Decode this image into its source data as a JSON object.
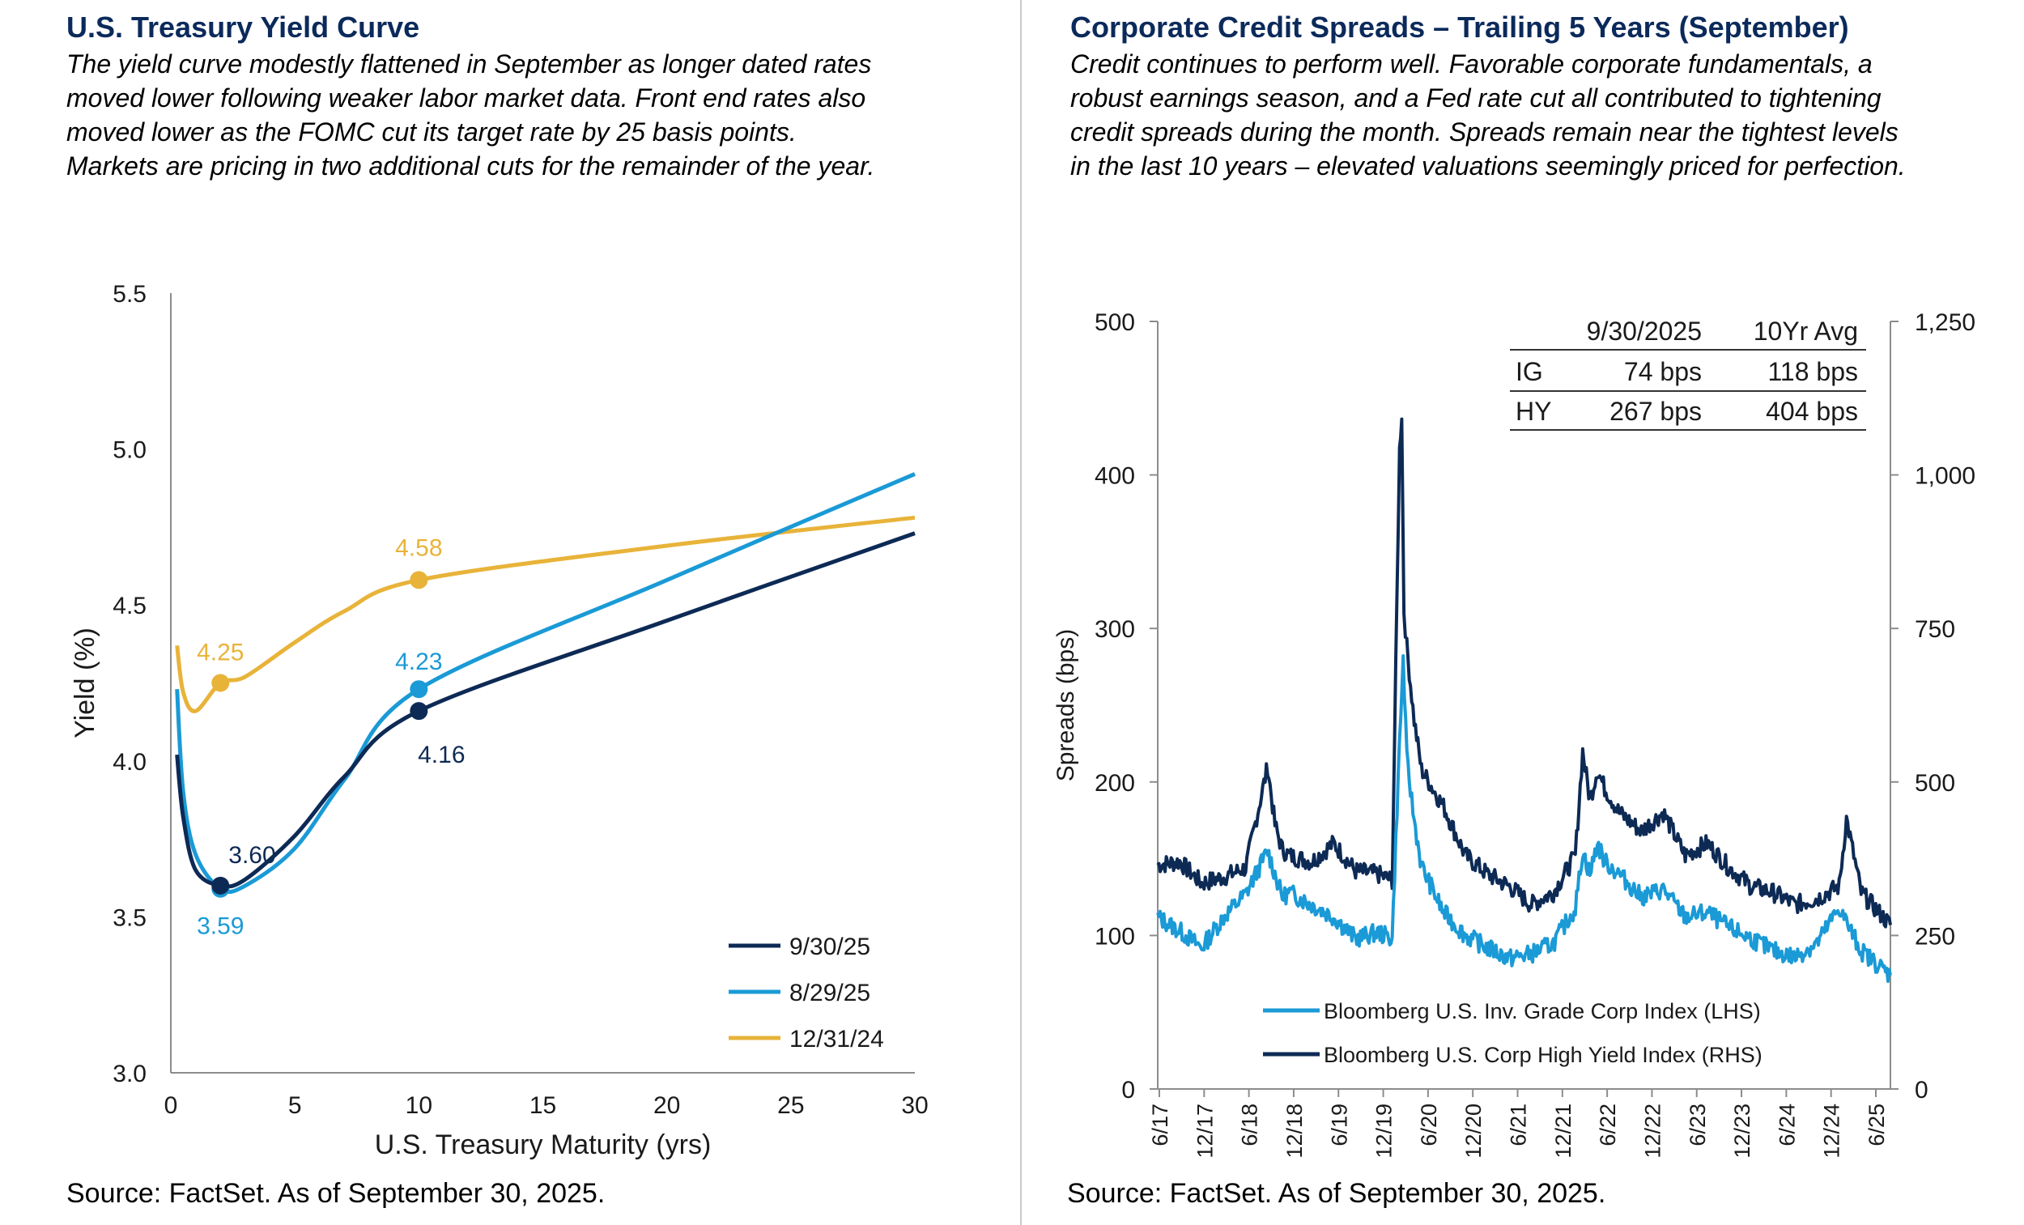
{
  "left": {
    "title": "U.S. Treasury Yield Curve",
    "description": [
      "The yield curve modestly flattened in September as longer dated rates",
      "moved lower following weaker labor market data. Front end rates also",
      "moved lower as the FOMC cut its target rate by 25 basis points.",
      "Markets are pricing in two additional cuts for the remainder of the year."
    ],
    "source": "Source: FactSet. As of September 30, 2025."
  },
  "right": {
    "title": "Corporate Credit Spreads – Trailing 5 Years (September)",
    "description": [
      "Credit continues to perform well. Favorable corporate fundamentals, a",
      "robust earnings season, and a Fed rate cut all contributed to tightening",
      "credit spreads during the month. Spreads remain near the tightest levels",
      "in the last 10 years – elevated valuations seemingly priced for perfection."
    ],
    "source": "Source: FactSet. As of September 30, 2025."
  },
  "chart_data": [
    {
      "type": "line",
      "xlabel": "U.S. Treasury Maturity (yrs)",
      "ylabel": "Yield (%)",
      "xlim": [
        0,
        30
      ],
      "ylim": [
        3.0,
        5.5
      ],
      "xticks": [
        0,
        5,
        10,
        15,
        20,
        25,
        30
      ],
      "yticks": [
        "3.0",
        "3.5",
        "4.0",
        "4.5",
        "5.0",
        "5.5"
      ],
      "legend_position": "bottom-right",
      "series": [
        {
          "name": "9/30/25",
          "color": "#0d2a55",
          "x": [
            0.25,
            0.5,
            1,
            2,
            3,
            5,
            7,
            10,
            20,
            30
          ],
          "y": [
            4.02,
            3.82,
            3.65,
            3.6,
            3.62,
            3.76,
            3.95,
            4.16,
            4.45,
            4.73
          ],
          "markers": [
            {
              "x": 2,
              "y": 3.6,
              "label": "3.60"
            },
            {
              "x": 10,
              "y": 4.16,
              "label": "4.16"
            }
          ]
        },
        {
          "name": "8/29/25",
          "color": "#1a9ad6",
          "x": [
            0.25,
            0.5,
            1,
            2,
            3,
            5,
            7,
            10,
            20,
            30
          ],
          "y": [
            4.23,
            3.9,
            3.7,
            3.59,
            3.6,
            3.72,
            3.94,
            4.23,
            4.58,
            4.92
          ],
          "markers": [
            {
              "x": 2,
              "y": 3.59,
              "label": "3.59"
            },
            {
              "x": 10,
              "y": 4.23,
              "label": "4.23"
            }
          ]
        },
        {
          "name": "12/31/24",
          "color": "#e8b339",
          "x": [
            0.25,
            0.5,
            1,
            2,
            3,
            5,
            7,
            10,
            20,
            30
          ],
          "y": [
            4.37,
            4.22,
            4.16,
            4.25,
            4.27,
            4.38,
            4.48,
            4.58,
            4.69,
            4.78
          ],
          "markers": [
            {
              "x": 2,
              "y": 4.25,
              "label": "4.25"
            },
            {
              "x": 10,
              "y": 4.58,
              "label": "4.58"
            }
          ]
        }
      ]
    },
    {
      "type": "line",
      "ylabel": "Spreads (bps)",
      "ylim_left": [
        0,
        500
      ],
      "ylim_right": [
        0,
        1250
      ],
      "yticks_left": [
        "0",
        "100",
        "200",
        "300",
        "400",
        "500"
      ],
      "yticks_right": [
        "0",
        "250",
        "500",
        "750",
        "1,000",
        "1,250"
      ],
      "xticks": [
        "6/17",
        "12/17",
        "6/18",
        "12/18",
        "6/19",
        "12/19",
        "6/20",
        "12/20",
        "6/21",
        "12/21",
        "6/22",
        "12/22",
        "6/23",
        "12/23",
        "6/24",
        "12/24",
        "6/25"
      ],
      "legend_position": "bottom-center",
      "series": [
        {
          "name": "Bloomberg U.S. Inv. Grade Corp Index (LHS)",
          "axis": "left",
          "color": "#1a9ad6",
          "x": [
            0,
            3,
            6,
            9,
            12,
            15,
            17,
            18,
            21,
            24,
            27,
            30,
            32,
            33,
            33.5,
            34,
            35,
            36,
            39,
            42,
            45,
            48,
            51,
            54,
            57,
            58,
            59,
            60,
            61,
            63,
            66,
            69,
            72,
            75,
            78,
            81,
            84,
            87,
            90,
            93,
            96,
            99,
            100
          ],
          "y": [
            112,
            103,
            92,
            112,
            127,
            155,
            125,
            128,
            120,
            112,
            98,
            102,
            98,
            225,
            280,
            215,
            175,
            145,
            115,
            100,
            92,
            85,
            88,
            95,
            118,
            155,
            140,
            160,
            148,
            140,
            125,
            130,
            112,
            115,
            105,
            98,
            90,
            86,
            95,
            118,
            90,
            78,
            74
          ]
        },
        {
          "name": "Bloomberg U.S. Corp High Yield Index (RHS)",
          "axis": "right",
          "color": "#0d2a55",
          "x": [
            0,
            3,
            6,
            9,
            12,
            15,
            16,
            17,
            18,
            21,
            24,
            27,
            30,
            32,
            33,
            33.3,
            33.6,
            34,
            35,
            36,
            39,
            42,
            45,
            48,
            51,
            54,
            57,
            58,
            59,
            60,
            61,
            63,
            66,
            69,
            72,
            75,
            78,
            81,
            84,
            87,
            90,
            93,
            94,
            96,
            99,
            100
          ],
          "y": [
            365,
            370,
            335,
            345,
            360,
            525,
            430,
            390,
            380,
            370,
            400,
            355,
            350,
            340,
            1040,
            1100,
            780,
            720,
            600,
            520,
            460,
            380,
            350,
            330,
            300,
            320,
            380,
            550,
            470,
            520,
            490,
            450,
            420,
            450,
            380,
            400,
            360,
            330,
            320,
            300,
            310,
            330,
            440,
            320,
            280,
            267
          ]
        }
      ],
      "stats_table": {
        "headers": [
          "",
          "9/30/2025",
          "10Yr Avg"
        ],
        "rows": [
          [
            "IG",
            "74 bps",
            "118 bps"
          ],
          [
            "HY",
            "267 bps",
            "404 bps"
          ]
        ]
      }
    }
  ]
}
